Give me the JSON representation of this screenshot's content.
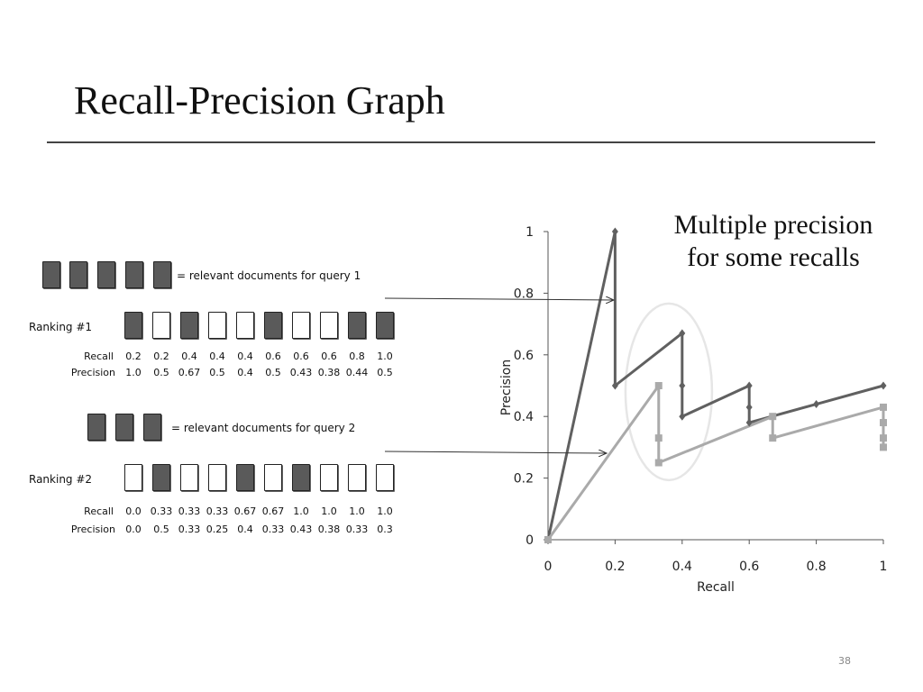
{
  "slide": {
    "title": "Recall-Precision Graph",
    "page_number": "38"
  },
  "left": {
    "query1_legend": "= relevant documents for query 1",
    "query2_legend": "= relevant documents for query 2",
    "ranking1": {
      "label": "Ranking #1",
      "relevance": [
        true,
        false,
        true,
        false,
        false,
        true,
        false,
        false,
        true,
        true
      ],
      "recall_label": "Recall",
      "precision_label": "Precision",
      "recall": [
        "0.2",
        "0.2",
        "0.4",
        "0.4",
        "0.4",
        "0.6",
        "0.6",
        "0.6",
        "0.8",
        "1.0"
      ],
      "precision": [
        "1.0",
        "0.5",
        "0.67",
        "0.5",
        "0.4",
        "0.5",
        "0.43",
        "0.38",
        "0.44",
        "0.5"
      ]
    },
    "ranking2": {
      "label": "Ranking #2",
      "relevance": [
        false,
        true,
        false,
        false,
        true,
        false,
        true,
        false,
        false,
        false
      ],
      "recall_label": "Recall",
      "precision_label": "Precision",
      "recall": [
        "0.0",
        "0.33",
        "0.33",
        "0.33",
        "0.67",
        "0.67",
        "1.0",
        "1.0",
        "1.0",
        "1.0"
      ],
      "precision": [
        "0.0",
        "0.5",
        "0.33",
        "0.25",
        "0.4",
        "0.33",
        "0.43",
        "0.38",
        "0.33",
        "0.3"
      ]
    }
  },
  "annotation": {
    "line1": "Multiple precision",
    "line2": "for some recalls"
  },
  "chart_data": {
    "type": "line",
    "title": "",
    "xlabel": "Recall",
    "ylabel": "Precision",
    "xlim": [
      0,
      1
    ],
    "ylim": [
      0,
      1
    ],
    "x_ticks": [
      "0",
      "0.2",
      "0.4",
      "0.6",
      "0.8",
      "1"
    ],
    "y_ticks": [
      "0",
      "0.2",
      "0.4",
      "0.6",
      "0.8",
      "1"
    ],
    "grid": false,
    "legend": "none",
    "series": [
      {
        "color": "#606060",
        "marker": "diamond",
        "points": [
          [
            0,
            0
          ],
          [
            0.2,
            1.0
          ],
          [
            0.2,
            0.5
          ],
          [
            0.4,
            0.67
          ],
          [
            0.4,
            0.5
          ],
          [
            0.4,
            0.4
          ],
          [
            0.6,
            0.5
          ],
          [
            0.6,
            0.43
          ],
          [
            0.6,
            0.38
          ],
          [
            0.8,
            0.44
          ],
          [
            1.0,
            0.5
          ]
        ]
      },
      {
        "color": "#aaaaaa",
        "marker": "square",
        "points": [
          [
            0,
            0
          ],
          [
            0.33,
            0.5
          ],
          [
            0.33,
            0.33
          ],
          [
            0.33,
            0.25
          ],
          [
            0.67,
            0.4
          ],
          [
            0.67,
            0.33
          ],
          [
            1.0,
            0.43
          ],
          [
            1.0,
            0.38
          ],
          [
            1.0,
            0.33
          ],
          [
            1.0,
            0.3
          ]
        ]
      }
    ],
    "highlight_ellipse": {
      "x_center": 0.36,
      "y_center": 0.48,
      "note": "multiple precision values at the same recall"
    }
  }
}
